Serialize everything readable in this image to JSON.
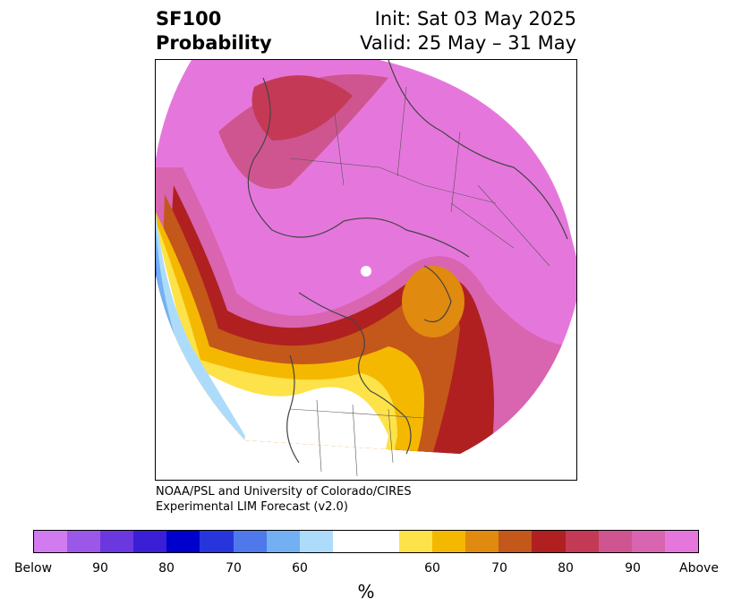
{
  "header": {
    "title_line1": "SF100",
    "title_line2": "Probability",
    "init": "Init: Sat 03 May 2025",
    "valid": "Valid: 25 May – 31 May"
  },
  "credits": {
    "line1": "NOAA/PSL and University of Colorado/CIRES",
    "line2": "Experimental LIM Forecast (v2.0)"
  },
  "map": {
    "projection": "north-polar-stereographic",
    "features": [
      "Eurasia and Europe dominated by high Above probability",
      "Arctic/Greenland Above",
      "Western North America and Pacific Below probability",
      "Eastern North America near-normal",
      "North Atlantic high Above probability"
    ]
  },
  "colorbar": {
    "colors": [
      "#d27af0",
      "#9b58e8",
      "#6b37de",
      "#3a1fd6",
      "#0000cd",
      "#2636dc",
      "#4f79ea",
      "#72b0f3",
      "#addcfb",
      "#ffffff",
      "#ffffff",
      "#fde24a",
      "#f5b800",
      "#e08a10",
      "#c4571a",
      "#b02020",
      "#c43a56",
      "#cf5590",
      "#d964b0",
      "#e577dc"
    ],
    "labels": [
      "Below",
      "90",
      "80",
      "70",
      "60",
      "60",
      "70",
      "80",
      "90",
      "Above"
    ],
    "unit": "%"
  }
}
